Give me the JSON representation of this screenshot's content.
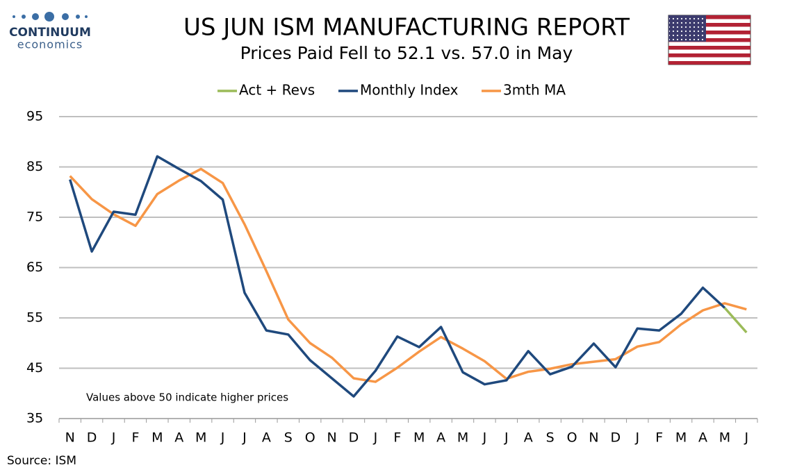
{
  "logo": {
    "name": "CONTINUUM",
    "tagline": "economics"
  },
  "chart_data": {
    "type": "line",
    "title": "US JUN ISM MANUFACTURING REPORT",
    "subtitle": "Prices Paid Fell to 52.1 vs. 57.0 in May",
    "annotation": "Values above 50 indicate higher prices",
    "source": "Source: ISM",
    "categories": [
      "N",
      "D",
      "J",
      "F",
      "M",
      "A",
      "M",
      "J",
      "J",
      "A",
      "S",
      "O",
      "N",
      "D",
      "J",
      "F",
      "M",
      "A",
      "M",
      "J",
      "J",
      "A",
      "S",
      "O",
      "N",
      "D",
      "J",
      "F",
      "M",
      "A",
      "M",
      "J"
    ],
    "series": [
      {
        "name": "Act + Revs",
        "color": "#9bbb59",
        "values": [
          null,
          null,
          null,
          null,
          null,
          null,
          null,
          null,
          null,
          null,
          null,
          null,
          null,
          null,
          null,
          null,
          null,
          null,
          null,
          null,
          null,
          null,
          null,
          null,
          null,
          null,
          null,
          null,
          null,
          null,
          57.0,
          52.1
        ]
      },
      {
        "name": "Monthly Index",
        "color": "#1f497d",
        "values": [
          82.5,
          68.2,
          76.1,
          75.5,
          87.1,
          84.6,
          82.2,
          78.5,
          60.0,
          52.5,
          51.7,
          46.6,
          43.0,
          39.4,
          44.5,
          51.3,
          49.2,
          53.2,
          44.2,
          41.8,
          42.6,
          48.4,
          43.8,
          45.3,
          49.9,
          45.2,
          52.9,
          52.5,
          55.8,
          61.0,
          57.0,
          null
        ]
      },
      {
        "name": "3mth MA",
        "color": "#f79646",
        "values": [
          83.2,
          78.6,
          75.6,
          73.3,
          79.6,
          82.3,
          84.6,
          81.8,
          73.6,
          64.3,
          54.7,
          50.0,
          47.1,
          43.0,
          42.3,
          45.1,
          48.3,
          51.2,
          48.9,
          46.4,
          42.9,
          44.3,
          44.9,
          45.8,
          46.3,
          46.8,
          49.3,
          50.2,
          53.7,
          56.5,
          57.9,
          56.7
        ]
      }
    ],
    "ylim": [
      35,
      95
    ],
    "yticks": [
      35,
      45,
      55,
      65,
      75,
      85,
      95
    ],
    "grid": true,
    "legend": "top"
  }
}
